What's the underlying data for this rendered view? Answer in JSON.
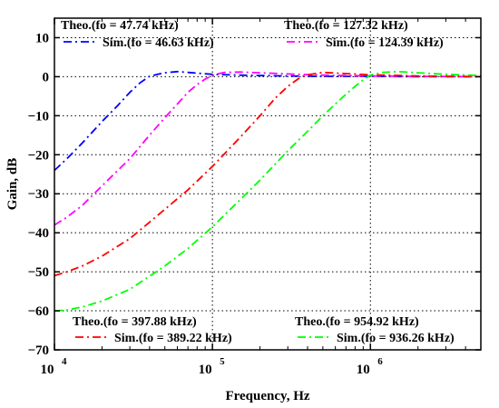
{
  "chart_data": {
    "type": "line",
    "xlabel": "Frequency, Hz",
    "ylabel": "Gain, dB",
    "xscale": "log",
    "xlim": [
      10000,
      5000000
    ],
    "ylim": [
      -70,
      15
    ],
    "x_ticks": [
      10000,
      100000,
      1000000
    ],
    "x_tick_labels": [
      {
        "base": "10",
        "exp": "4"
      },
      {
        "base": "10",
        "exp": "5"
      },
      {
        "base": "10",
        "exp": "6"
      }
    ],
    "y_ticks": [
      -70,
      -60,
      -50,
      -40,
      -30,
      -20,
      -10,
      0,
      10
    ],
    "y_tick_labels": [
      "−70",
      "−60",
      "−50",
      "−40",
      "−30",
      "−20",
      "−10",
      "0",
      "10"
    ],
    "grid": true,
    "grid_style": "dotted",
    "legend_placement": "inside corners",
    "series": [
      {
        "name": "Sim.(fo = 46.63 kHz)",
        "theo_label": "Theo.(fo = 47.74 kHz)",
        "color": "#0000ff",
        "legend_corner": "top-left",
        "x": [
          10000,
          12000,
          15000,
          20000,
          25000,
          30000,
          35000,
          40000,
          45000,
          50000,
          60000,
          70000,
          80000,
          100000,
          150000,
          200000,
          300000,
          500000,
          1000000,
          2000000,
          5000000
        ],
        "y": [
          -24,
          -21,
          -17,
          -11.5,
          -7.5,
          -4,
          -1.5,
          0.1,
          0.6,
          1.0,
          1.3,
          1.1,
          0.9,
          0.6,
          0.4,
          0.3,
          0.2,
          0.1,
          0.1,
          0,
          0
        ]
      },
      {
        "name": "Sim.(fo = 124.39 kHz)",
        "theo_label": "Theo.(fo = 127.32 kHz)",
        "color": "#ff00ff",
        "legend_corner": "top-right",
        "x": [
          10000,
          12000,
          15000,
          20000,
          30000,
          40000,
          50000,
          60000,
          70000,
          80000,
          90000,
          100000,
          110000,
          120000,
          150000,
          200000,
          300000,
          500000,
          1000000,
          2000000,
          5000000
        ],
        "y": [
          -38,
          -36,
          -33,
          -28,
          -21,
          -15,
          -10.5,
          -7,
          -4,
          -2,
          -0.6,
          0.3,
          0.8,
          1.1,
          1.2,
          1.0,
          0.7,
          0.4,
          0.2,
          0.1,
          0
        ]
      },
      {
        "name": "Sim.(fo = 389.22 kHz)",
        "theo_label": "Theo.(fo = 397.88 kHz)",
        "color": "#ff0000",
        "legend_corner": "bottom-left",
        "x": [
          10000,
          12000,
          15000,
          20000,
          30000,
          50000,
          70000,
          100000,
          150000,
          200000,
          250000,
          300000,
          350000,
          400000,
          500000,
          700000,
          1000000,
          2000000,
          5000000
        ],
        "y": [
          -51,
          -50,
          -48.5,
          -46,
          -41.5,
          -34,
          -29,
          -23,
          -15.5,
          -10,
          -5.5,
          -2.5,
          -0.5,
          0.5,
          1.1,
          0.8,
          0.5,
          0.2,
          0
        ]
      },
      {
        "name": "Sim.(fo = 936.26 kHz)",
        "theo_label": "Theo.(fo = 954.92 kHz)",
        "color": "#00ff00",
        "legend_corner": "bottom-right",
        "x": [
          10000,
          12000,
          15000,
          20000,
          30000,
          50000,
          70000,
          100000,
          150000,
          200000,
          300000,
          400000,
          500000,
          600000,
          700000,
          800000,
          900000,
          1000000,
          1200000,
          1500000,
          2000000,
          3000000,
          5000000
        ],
        "y": [
          -60,
          -59.8,
          -59,
          -57.5,
          -54.5,
          -48.5,
          -44,
          -38.5,
          -31.5,
          -26.5,
          -19,
          -14,
          -10,
          -7,
          -4.5,
          -2.5,
          -0.8,
          0.4,
          1.1,
          1.3,
          1.0,
          0.6,
          0.3
        ]
      }
    ]
  }
}
